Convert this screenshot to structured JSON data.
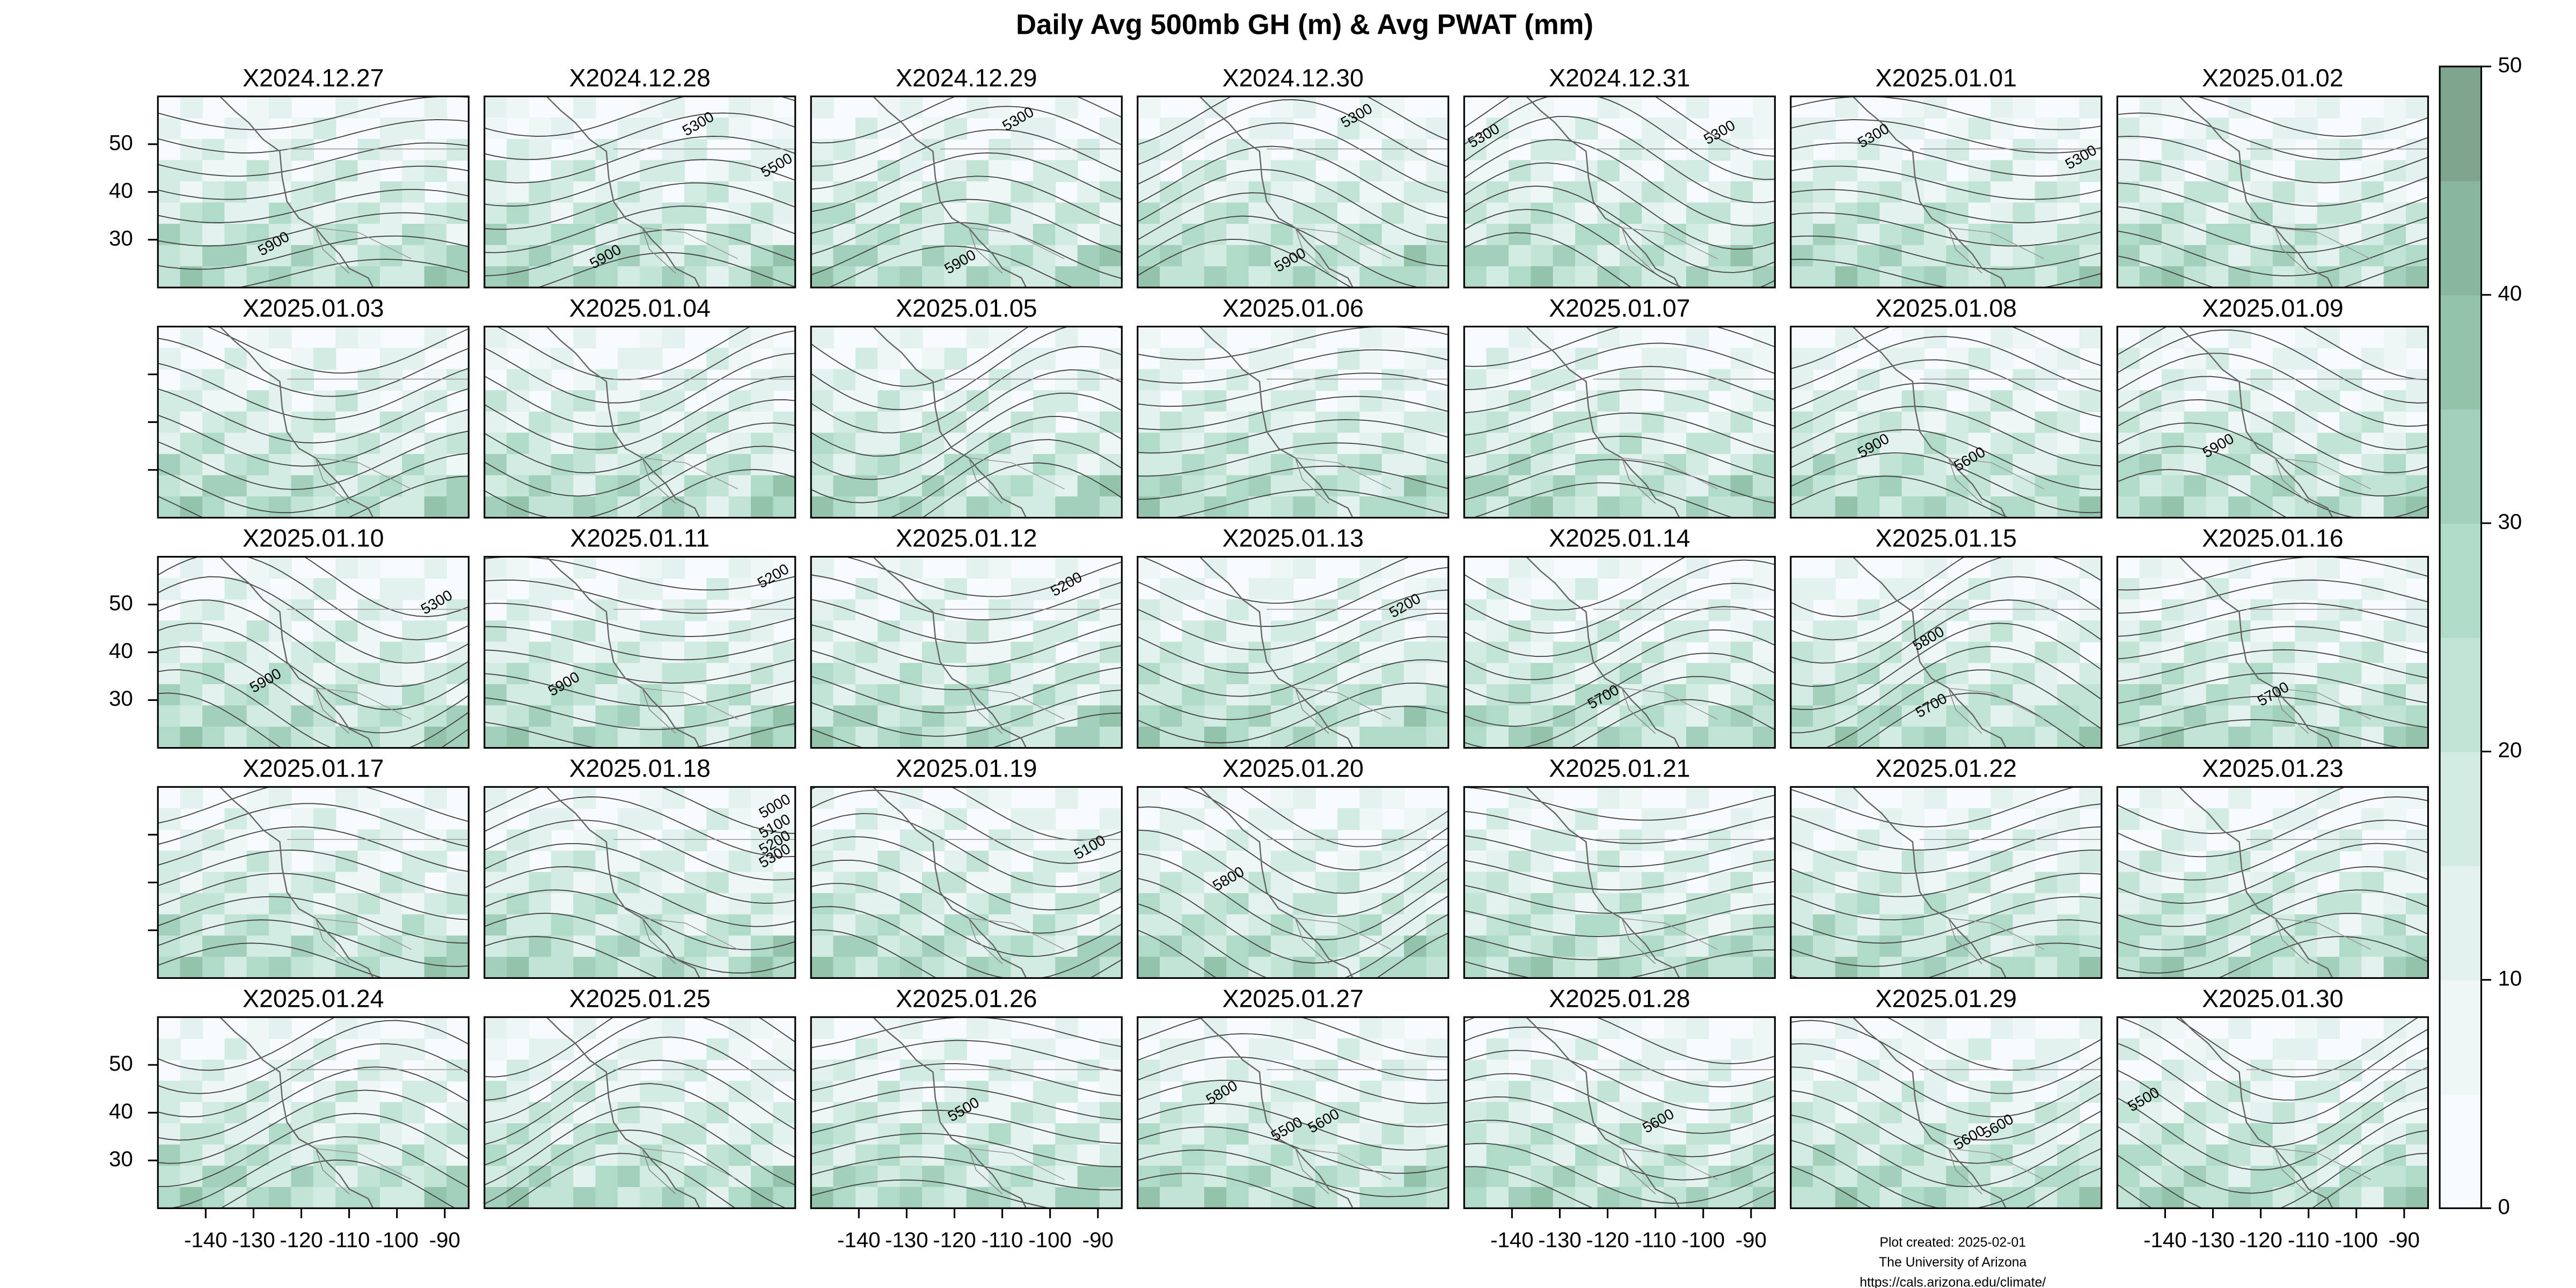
{
  "chart_data": {
    "type": "map-panels",
    "title": "Daily Avg 500mb GH (m) & Avg PWAT (mm)",
    "xlim": [
      -150,
      -85
    ],
    "xticks": [
      -140,
      -130,
      -120,
      -110,
      -100,
      -90
    ],
    "ylim": [
      20,
      60
    ],
    "yticks": [
      30,
      40,
      50
    ],
    "colorbar": {
      "lim": [
        0,
        50
      ],
      "ticks": [
        0,
        10,
        20,
        30,
        40,
        50
      ],
      "colors": [
        "#f7fbfd",
        "#eef6f6",
        "#e3f2ee",
        "#d3ece3",
        "#c2e4d6",
        "#b1dbc9",
        "#a2d0bb",
        "#93c3ab",
        "#89b69e",
        "#7fa48e"
      ]
    },
    "panels": [
      {
        "title": "X2024.12.27",
        "labels": [
          {
            "text": "5900",
            "lon": -125.7,
            "lat": 29
          }
        ]
      },
      {
        "title": "X2024.12.28",
        "labels": [
          {
            "text": "5300",
            "lon": -105.2,
            "lat": 54.1
          },
          {
            "text": "5500",
            "lon": -88.8,
            "lat": 45.4
          },
          {
            "text": "5900",
            "lon": -124.6,
            "lat": 26.3
          }
        ]
      },
      {
        "title": "X2024.12.29",
        "labels": [
          {
            "text": "5300",
            "lon": -106.6,
            "lat": 55.1
          },
          {
            "text": "5900",
            "lon": -118.7,
            "lat": 25.2
          }
        ]
      },
      {
        "title": "X2024.12.30",
        "labels": [
          {
            "text": "5300",
            "lon": -104.1,
            "lat": 55.8
          },
          {
            "text": "5900",
            "lon": -118,
            "lat": 25.6
          }
        ]
      },
      {
        "title": "X2024.12.31",
        "labels": [
          {
            "text": "5300",
            "lon": -96.5,
            "lat": 52.3
          },
          {
            "text": "5300",
            "lon": -145.8,
            "lat": 51.6
          }
        ]
      },
      {
        "title": "X2025.01.01",
        "labels": [
          {
            "text": "5300",
            "lon": -89.2,
            "lat": 47.1
          },
          {
            "text": "5300",
            "lon": -132.6,
            "lat": 51.6
          }
        ]
      },
      {
        "title": "X2025.01.02"
      },
      {
        "title": "X2025.01.03"
      },
      {
        "title": "X2025.01.04"
      },
      {
        "title": "X2025.01.05"
      },
      {
        "title": "X2025.01.06"
      },
      {
        "title": "X2025.01.07"
      },
      {
        "title": "X2025.01.08",
        "labels": [
          {
            "text": "5900",
            "lon": -132.6,
            "lat": 34.9
          },
          {
            "text": "5600",
            "lon": -112.5,
            "lat": 32.1
          }
        ]
      },
      {
        "title": "X2025.01.09",
        "labels": [
          {
            "text": "5900",
            "lon": -128.8,
            "lat": 34.9
          }
        ]
      },
      {
        "title": "X2025.01.10",
        "labels": [
          {
            "text": "5300",
            "lon": -91.6,
            "lat": 50.3
          },
          {
            "text": "5900",
            "lon": -127.4,
            "lat": 33.9
          }
        ]
      },
      {
        "title": "X2025.01.11",
        "labels": [
          {
            "text": "5200",
            "lon": -89.5,
            "lat": 55.8
          },
          {
            "text": "5900",
            "lon": -133.3,
            "lat": 33.2
          }
        ]
      },
      {
        "title": "X2025.01.12",
        "labels": [
          {
            "text": "5200",
            "lon": -96.5,
            "lat": 54.1
          }
        ]
      },
      {
        "title": "X2025.01.13",
        "labels": [
          {
            "text": "5200",
            "lon": -94,
            "lat": 49.6
          }
        ]
      },
      {
        "title": "X2025.01.14",
        "labels": [
          {
            "text": "5700",
            "lon": -120.8,
            "lat": 30.5
          }
        ]
      },
      {
        "title": "X2025.01.15",
        "labels": [
          {
            "text": "5800",
            "lon": -121.1,
            "lat": 42.7
          },
          {
            "text": "5700",
            "lon": -120.5,
            "lat": 28.7
          }
        ]
      },
      {
        "title": "X2025.01.16",
        "labels": [
          {
            "text": "5700",
            "lon": -117.3,
            "lat": 31.1
          }
        ]
      },
      {
        "title": "X2025.01.17"
      },
      {
        "title": "X2025.01.18",
        "labels": [
          {
            "text": "5000",
            "lon": -89.2,
            "lat": 55.8
          },
          {
            "text": "5100",
            "lon": -89.2,
            "lat": 51.6
          },
          {
            "text": "5200",
            "lon": -89.2,
            "lat": 48.2
          },
          {
            "text": "5300",
            "lon": -89.2,
            "lat": 45.4
          }
        ]
      },
      {
        "title": "X2025.01.19",
        "labels": [
          {
            "text": "5100",
            "lon": -91.6,
            "lat": 47.2
          }
        ]
      },
      {
        "title": "X2025.01.20",
        "labels": [
          {
            "text": "5800",
            "lon": -130.9,
            "lat": 40.6
          }
        ]
      },
      {
        "title": "X2025.01.21"
      },
      {
        "title": "X2025.01.22"
      },
      {
        "title": "X2025.01.23"
      },
      {
        "title": "X2025.01.24"
      },
      {
        "title": "X2025.01.25"
      },
      {
        "title": "X2025.01.26",
        "labels": [
          {
            "text": "5500",
            "lon": -118,
            "lat": 40.5
          }
        ]
      },
      {
        "title": "X2025.01.27",
        "labels": [
          {
            "text": "5800",
            "lon": -132.3,
            "lat": 44
          },
          {
            "text": "5500",
            "lon": -118.7,
            "lat": 36.4
          },
          {
            "text": "5600",
            "lon": -111,
            "lat": 38.1
          }
        ]
      },
      {
        "title": "X2025.01.28",
        "labels": [
          {
            "text": "5600",
            "lon": -109.3,
            "lat": 38.1
          }
        ]
      },
      {
        "title": "X2025.01.29",
        "labels": [
          {
            "text": "5600",
            "lon": -112.5,
            "lat": 34.6
          },
          {
            "text": "5600",
            "lon": -106.6,
            "lat": 37
          }
        ]
      },
      {
        "title": "X2025.01.30",
        "labels": [
          {
            "text": "5500",
            "lon": -144.4,
            "lat": 42.6
          }
        ]
      }
    ],
    "footer": [
      "Plot created: 2025-02-01",
      "The University of Arizona",
      "https://cals.arizona.edu/climate/"
    ]
  }
}
